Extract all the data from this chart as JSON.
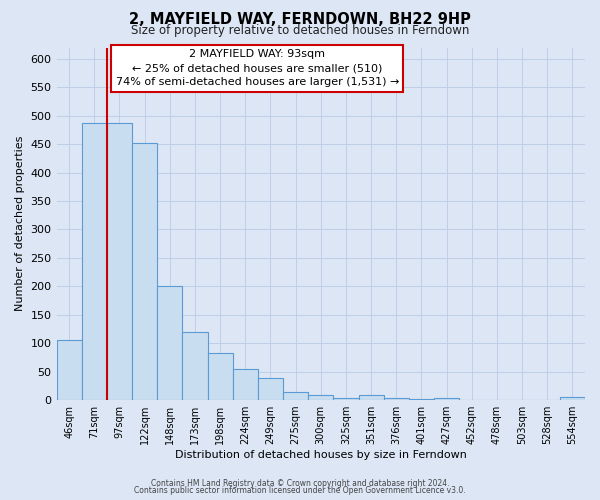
{
  "title": "2, MAYFIELD WAY, FERNDOWN, BH22 9HP",
  "subtitle": "Size of property relative to detached houses in Ferndown",
  "xlabel": "Distribution of detached houses by size in Ferndown",
  "ylabel": "Number of detached properties",
  "bar_labels": [
    "46sqm",
    "71sqm",
    "97sqm",
    "122sqm",
    "148sqm",
    "173sqm",
    "198sqm",
    "224sqm",
    "249sqm",
    "275sqm",
    "300sqm",
    "325sqm",
    "351sqm",
    "376sqm",
    "401sqm",
    "427sqm",
    "452sqm",
    "478sqm",
    "503sqm",
    "528sqm",
    "554sqm"
  ],
  "bar_values": [
    105,
    488,
    488,
    452,
    200,
    120,
    83,
    55,
    38,
    15,
    9,
    3,
    9,
    3,
    2,
    3,
    1,
    1,
    1,
    1,
    5
  ],
  "bar_color": "#c9ddf0",
  "bar_edgecolor": "#5b9bd5",
  "background_color": "#dce6f5",
  "grid_color": "#c0cfe8",
  "red_line_index": 1.5,
  "ylim": [
    0,
    620
  ],
  "yticks": [
    0,
    50,
    100,
    150,
    200,
    250,
    300,
    350,
    400,
    450,
    500,
    550,
    600
  ],
  "annotation_title": "2 MAYFIELD WAY: 93sqm",
  "annotation_line1": "← 25% of detached houses are smaller (510)",
  "annotation_line2": "74% of semi-detached houses are larger (1,531) →",
  "footer_line1": "Contains HM Land Registry data © Crown copyright and database right 2024.",
  "footer_line2": "Contains public sector information licensed under the Open Government Licence v3.0."
}
